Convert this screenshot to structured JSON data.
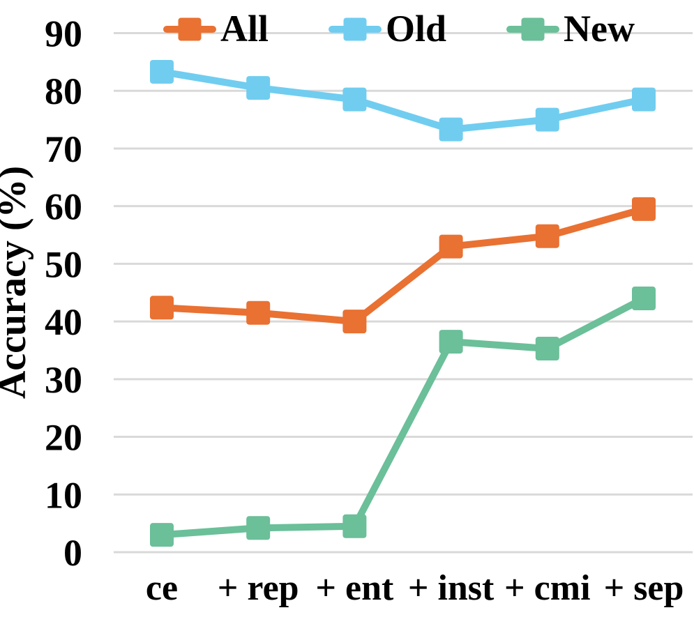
{
  "chart_data": {
    "type": "line",
    "title": "",
    "xlabel": "",
    "ylabel": "Accuracy (%)",
    "categories": [
      "ce",
      "+ rep",
      "+ ent",
      "+ inst",
      "+ cmi",
      "+ sep"
    ],
    "series": [
      {
        "name": "All",
        "color": "#E97132",
        "values": [
          42.4,
          41.5,
          40.0,
          53.0,
          54.8,
          59.5
        ]
      },
      {
        "name": "Old",
        "color": "#70CDF0",
        "values": [
          83.3,
          80.5,
          78.5,
          73.3,
          75.0,
          78.5
        ]
      },
      {
        "name": "New",
        "color": "#6BBF99",
        "values": [
          3.0,
          4.2,
          4.5,
          36.5,
          35.3,
          44.0
        ]
      }
    ],
    "ylim": [
      0,
      90
    ],
    "yticks": [
      0,
      10,
      20,
      30,
      40,
      50,
      60,
      70,
      80,
      90
    ],
    "grid": "horizontal",
    "gridline_color": "#D9D9D9",
    "text_color": "#000000",
    "legend_position": "top",
    "marker_shape": "square"
  }
}
